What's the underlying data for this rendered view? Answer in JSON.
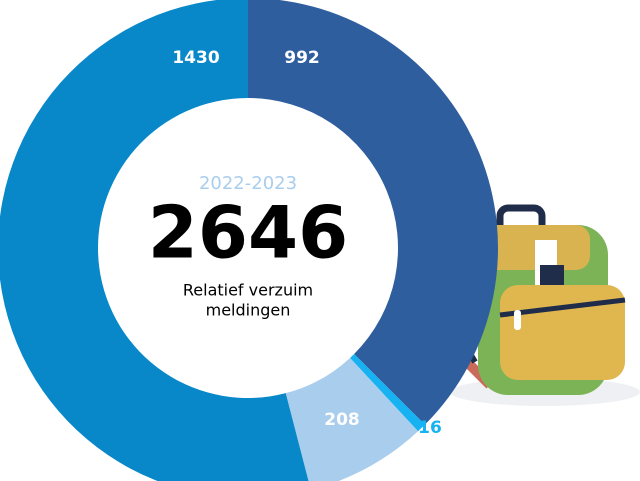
{
  "chart_data": {
    "type": "donut",
    "categories": [
      null,
      null,
      null,
      null
    ],
    "series": [
      {
        "values": [
          992,
          16,
          208,
          1430
        ],
        "colors": [
          "#2e5e9e",
          "#17b2f2",
          "#a9cdec",
          "#0888c9"
        ]
      }
    ],
    "center_subtitle": "2022-2023",
    "center_value": 2646,
    "center_caption": [
      "Relatief verzuim",
      "meldingen"
    ]
  }
}
